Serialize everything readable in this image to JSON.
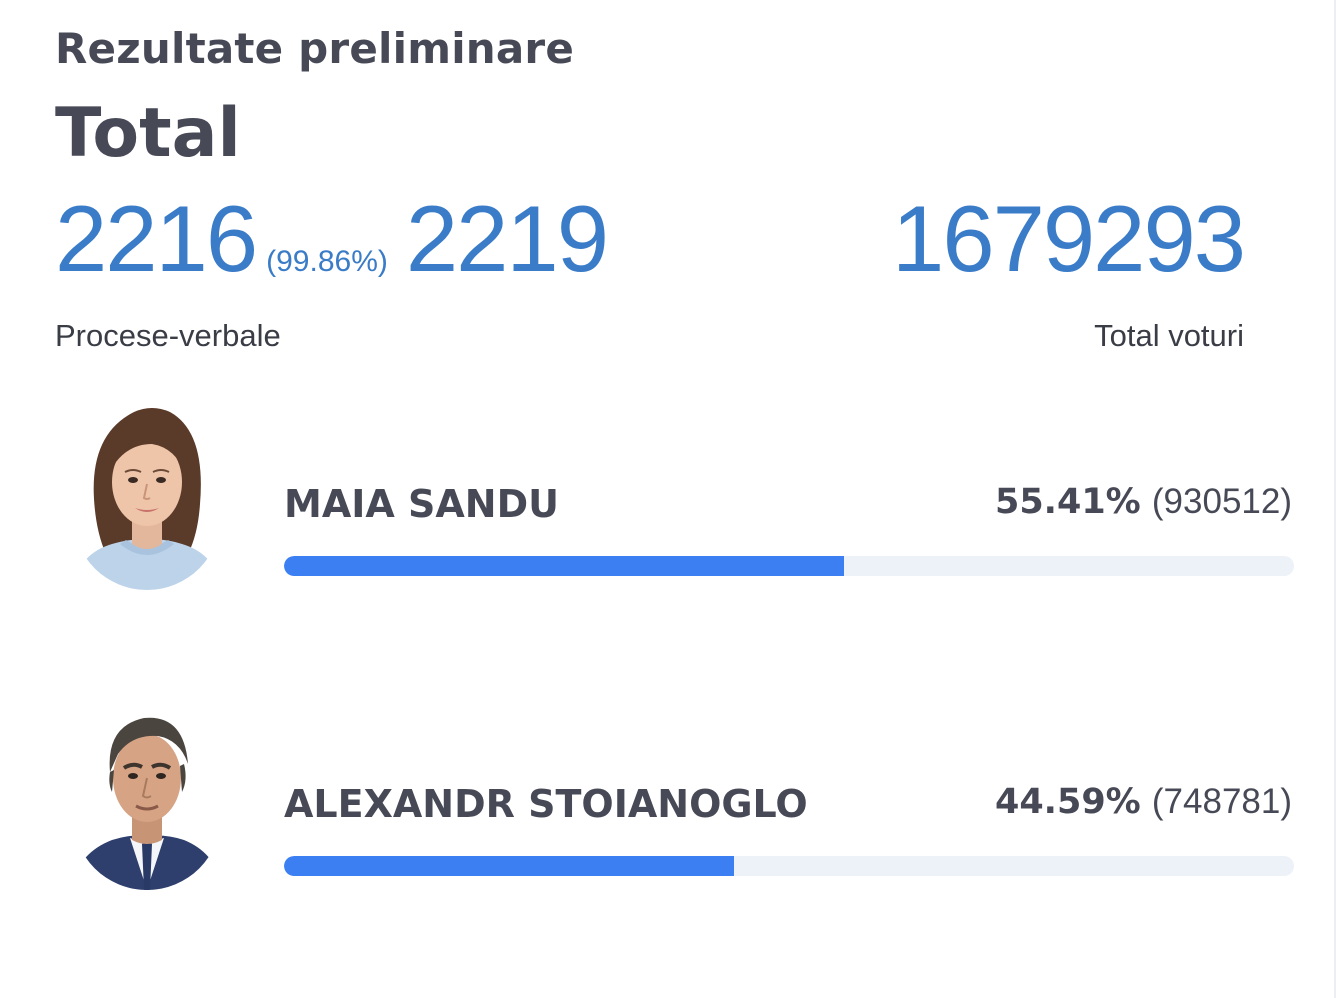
{
  "header": {
    "subtitle": "Rezultate preliminare",
    "title": "Total"
  },
  "stats": {
    "reports_counted": "2216",
    "reports_percent": "(99.86%)",
    "reports_total": "2219",
    "reports_label": "Procese-verbale",
    "total_votes": "1679293",
    "total_votes_label": "Total voturi"
  },
  "colors": {
    "accent_text": "#3a7cc8",
    "bar_fill": "#3b7ff2",
    "bar_track": "#edf1f8",
    "heading_text": "#474a56"
  },
  "candidates": [
    {
      "name": "MAIA SANDU",
      "percent": "55.41%",
      "votes": "(930512)",
      "share": 55.41,
      "avatar_icon": "candidate-photo-female"
    },
    {
      "name": "ALEXANDR STOIANOGLO",
      "percent": "44.59%",
      "votes": "(748781)",
      "share": 44.59,
      "avatar_icon": "candidate-photo-male"
    }
  ]
}
